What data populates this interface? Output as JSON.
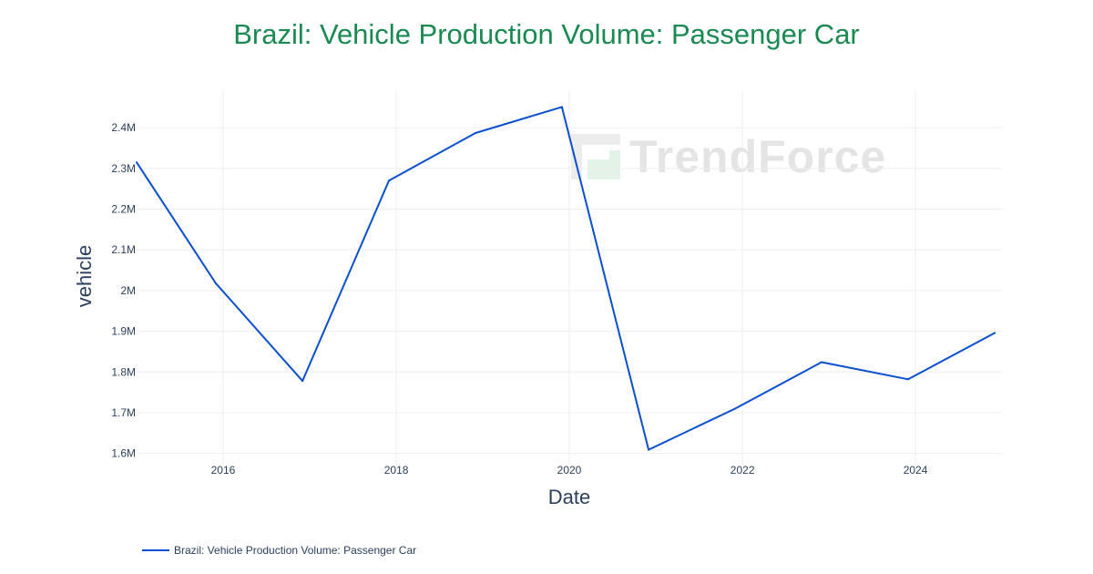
{
  "title": "Brazil: Vehicle Production Volume: Passenger Car",
  "watermark_text": "TrendForce",
  "colors": {
    "title": "#1a8a52",
    "line": "#0a4fd0",
    "watermark_green": "#2eaa55"
  },
  "chart_data": {
    "type": "line",
    "title": "Brazil: Vehicle Production Volume: Passenger Car",
    "xlabel": "Date",
    "ylabel": "vehicle",
    "xlim": [
      "2015-01-01",
      "2024-12-31"
    ],
    "ylim": [
      1570000,
      2490000
    ],
    "x_ticks": [
      "2016",
      "2018",
      "2020",
      "2022",
      "2024"
    ],
    "y_ticks": [
      {
        "value": 1600000,
        "label": "1.6M"
      },
      {
        "value": 1700000,
        "label": "1.7M"
      },
      {
        "value": 1800000,
        "label": "1.8M"
      },
      {
        "value": 1900000,
        "label": "1.9M"
      },
      {
        "value": 2000000,
        "label": "2M"
      },
      {
        "value": 2100000,
        "label": "2.1M"
      },
      {
        "value": 2200000,
        "label": "2.2M"
      },
      {
        "value": 2300000,
        "label": "2.3M"
      },
      {
        "value": 2400000,
        "label": "2.4M"
      }
    ],
    "grid": true,
    "legend_position": "bottom-left",
    "series": [
      {
        "name": "Brazil: Vehicle Production Volume: Passenger Car",
        "x": [
          "2015-01-01",
          "2015-12-01",
          "2016-12-01",
          "2017-12-01",
          "2018-12-01",
          "2019-12-01",
          "2020-12-01",
          "2021-12-01",
          "2022-12-01",
          "2023-12-01",
          "2024-12-01"
        ],
        "y": [
          2315000,
          2018000,
          1778000,
          2270000,
          2387000,
          2451000,
          1609000,
          1710000,
          1824000,
          1782000,
          1896000
        ]
      }
    ]
  }
}
